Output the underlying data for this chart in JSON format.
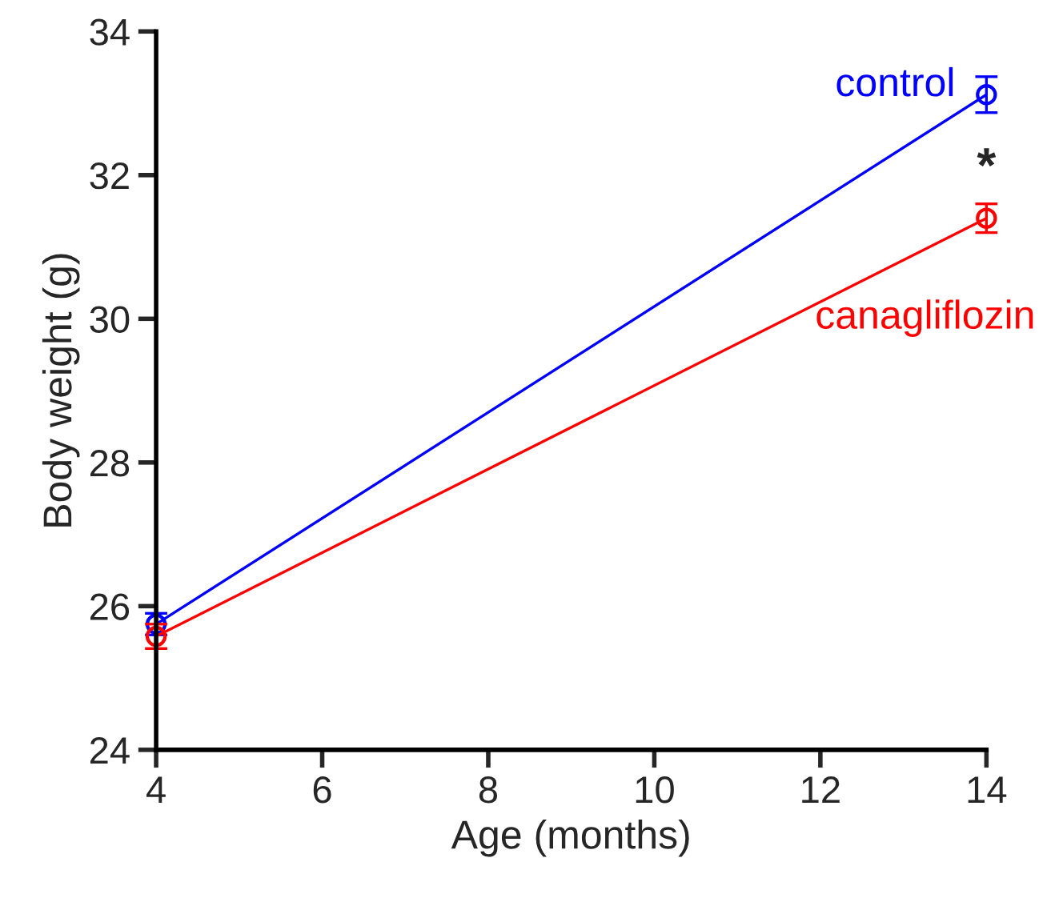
{
  "chart_data": {
    "type": "line",
    "xlabel": "Age (months)",
    "ylabel": "Body weight (g)",
    "x": [
      4,
      14
    ],
    "series": [
      {
        "name": "control",
        "color": "#0000ff",
        "values": [
          25.75,
          33.12
        ],
        "errors": [
          0.15,
          0.25
        ]
      },
      {
        "name": "canagliflozin",
        "color": "#ff0000",
        "values": [
          25.58,
          31.4
        ],
        "errors": [
          0.17,
          0.2
        ]
      }
    ],
    "xlim": [
      4,
      14
    ],
    "xticks": [
      4,
      6,
      8,
      10,
      12,
      14
    ],
    "ylim": [
      24,
      34
    ],
    "yticks": [
      24,
      26,
      28,
      30,
      32,
      34
    ],
    "annotations": [
      "*"
    ],
    "marker": "circle",
    "line_style": "solid",
    "grid": false,
    "legend": false
  }
}
